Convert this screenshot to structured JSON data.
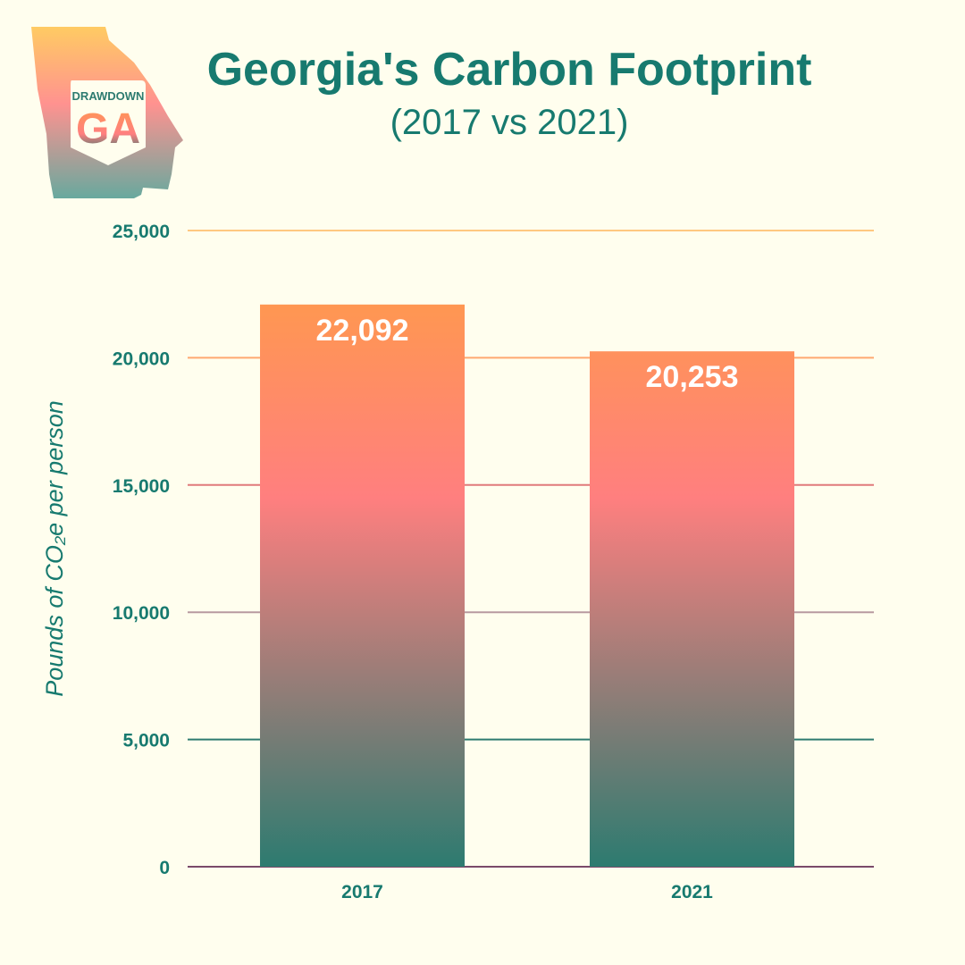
{
  "logo": {
    "text_top": "DRAWDOWN",
    "text_main": "GA"
  },
  "chart_data": {
    "type": "bar",
    "title": "Georgia's Carbon Footprint",
    "subtitle": "(2017 vs 2021)",
    "categories": [
      "2017",
      "2021"
    ],
    "values": [
      22092,
      20253
    ],
    "data_labels": [
      "22,092",
      "20,253"
    ],
    "ylabel": "Pounds of CO₂e per person",
    "xlabel": "",
    "ylim": [
      0,
      25000
    ],
    "yticks": [
      0,
      5000,
      10000,
      15000,
      20000,
      25000
    ],
    "ytick_labels": [
      "0",
      "5,000",
      "10,000",
      "15,000",
      "20,000",
      "25,000"
    ],
    "grid": true,
    "colors": {
      "background": "#fffeee",
      "text": "#177a6f",
      "gradient_top": "#ff9a4f",
      "gradient_mid": "#ff7f7f",
      "gradient_bottom": "#2d7b70",
      "baseline": "#7a4a6a"
    }
  }
}
